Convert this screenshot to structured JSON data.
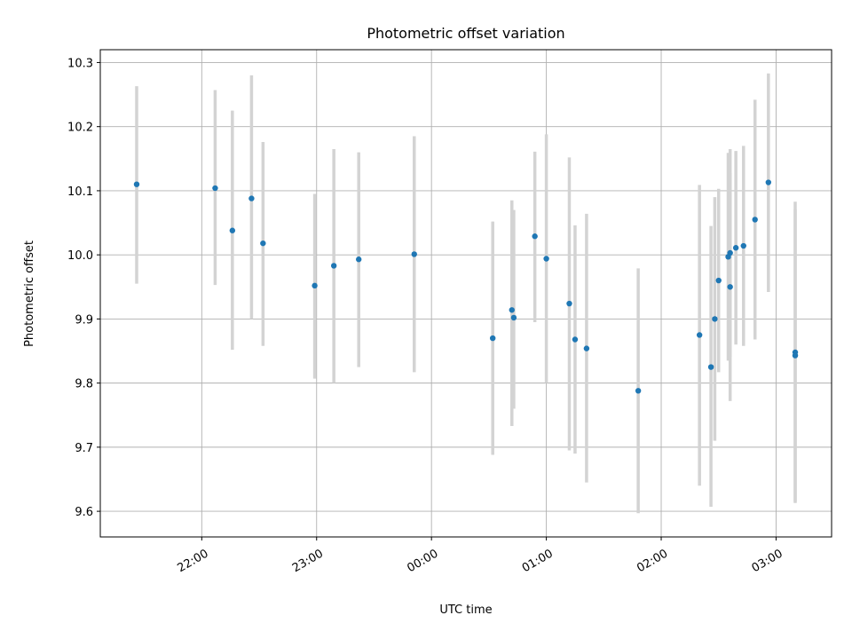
{
  "chart_data": {
    "type": "scatter",
    "title": "Photometric offset variation",
    "xlabel": "UTC time",
    "ylabel": "Photometric offset",
    "x_axis": {
      "type": "time",
      "range": [
        "21:07",
        "03:29"
      ],
      "ticks": [
        "22:00",
        "23:00",
        "00:00",
        "01:00",
        "02:00",
        "03:00"
      ]
    },
    "y_axis": {
      "range": [
        9.56,
        10.32
      ],
      "ticks": [
        "9.6",
        "9.7",
        "9.8",
        "9.9",
        "10.0",
        "10.1",
        "10.2",
        "10.3"
      ]
    },
    "grid": true,
    "error_bar_color": "#d3d3d3",
    "point_color": "#1f77b4",
    "series": [
      {
        "points": [
          {
            "x": "21:26",
            "y": 10.11,
            "ylow": 9.955,
            "yhigh": 10.263
          },
          {
            "x": "22:07",
            "y": 10.104,
            "ylow": 9.953,
            "yhigh": 10.257
          },
          {
            "x": "22:16",
            "y": 10.038,
            "ylow": 9.852,
            "yhigh": 10.225
          },
          {
            "x": "22:26",
            "y": 10.088,
            "ylow": 9.9,
            "yhigh": 10.28
          },
          {
            "x": "22:32",
            "y": 10.018,
            "ylow": 9.858,
            "yhigh": 10.176
          },
          {
            "x": "22:59",
            "y": 9.952,
            "ylow": 9.807,
            "yhigh": 10.095
          },
          {
            "x": "23:09",
            "y": 9.983,
            "ylow": 9.8,
            "yhigh": 10.165
          },
          {
            "x": "23:22",
            "y": 9.993,
            "ylow": 9.825,
            "yhigh": 10.16
          },
          {
            "x": "23:51",
            "y": 10.001,
            "ylow": 9.817,
            "yhigh": 10.185
          },
          {
            "x": "00:32",
            "y": 9.87,
            "ylow": 9.688,
            "yhigh": 10.052
          },
          {
            "x": "00:42",
            "y": 9.914,
            "ylow": 9.733,
            "yhigh": 10.085
          },
          {
            "x": "00:43",
            "y": 9.902,
            "ylow": 9.76,
            "yhigh": 10.07
          },
          {
            "x": "00:54",
            "y": 10.029,
            "ylow": 9.895,
            "yhigh": 10.161
          },
          {
            "x": "01:00",
            "y": 9.994,
            "ylow": 9.8,
            "yhigh": 10.188
          },
          {
            "x": "01:12",
            "y": 9.924,
            "ylow": 9.695,
            "yhigh": 10.152
          },
          {
            "x": "01:15",
            "y": 9.868,
            "ylow": 9.69,
            "yhigh": 10.046
          },
          {
            "x": "01:21",
            "y": 9.854,
            "ylow": 9.645,
            "yhigh": 10.064
          },
          {
            "x": "01:48",
            "y": 9.788,
            "ylow": 9.597,
            "yhigh": 9.979
          },
          {
            "x": "02:20",
            "y": 9.875,
            "ylow": 9.64,
            "yhigh": 10.109
          },
          {
            "x": "02:26",
            "y": 9.825,
            "ylow": 9.607,
            "yhigh": 10.045
          },
          {
            "x": "02:28",
            "y": 9.9,
            "ylow": 9.71,
            "yhigh": 10.09
          },
          {
            "x": "02:30",
            "y": 9.96,
            "ylow": 9.817,
            "yhigh": 10.103
          },
          {
            "x": "02:35",
            "y": 9.997,
            "ylow": 9.835,
            "yhigh": 10.159
          },
          {
            "x": "02:36",
            "y": 10.003,
            "ylow": 9.84,
            "yhigh": 10.165
          },
          {
            "x": "02:36",
            "y": 9.95,
            "ylow": 9.772,
            "yhigh": 10.128
          },
          {
            "x": "02:39",
            "y": 10.011,
            "ylow": 9.86,
            "yhigh": 10.162
          },
          {
            "x": "02:43",
            "y": 10.014,
            "ylow": 9.858,
            "yhigh": 10.17
          },
          {
            "x": "02:49",
            "y": 10.055,
            "ylow": 9.868,
            "yhigh": 10.242
          },
          {
            "x": "02:56",
            "y": 10.113,
            "ylow": 9.942,
            "yhigh": 10.283
          },
          {
            "x": "03:10",
            "y": 9.848,
            "ylow": 9.613,
            "yhigh": 10.083
          },
          {
            "x": "03:10",
            "y": 9.843,
            "ylow": 9.615,
            "yhigh": 10.071
          }
        ]
      }
    ]
  }
}
